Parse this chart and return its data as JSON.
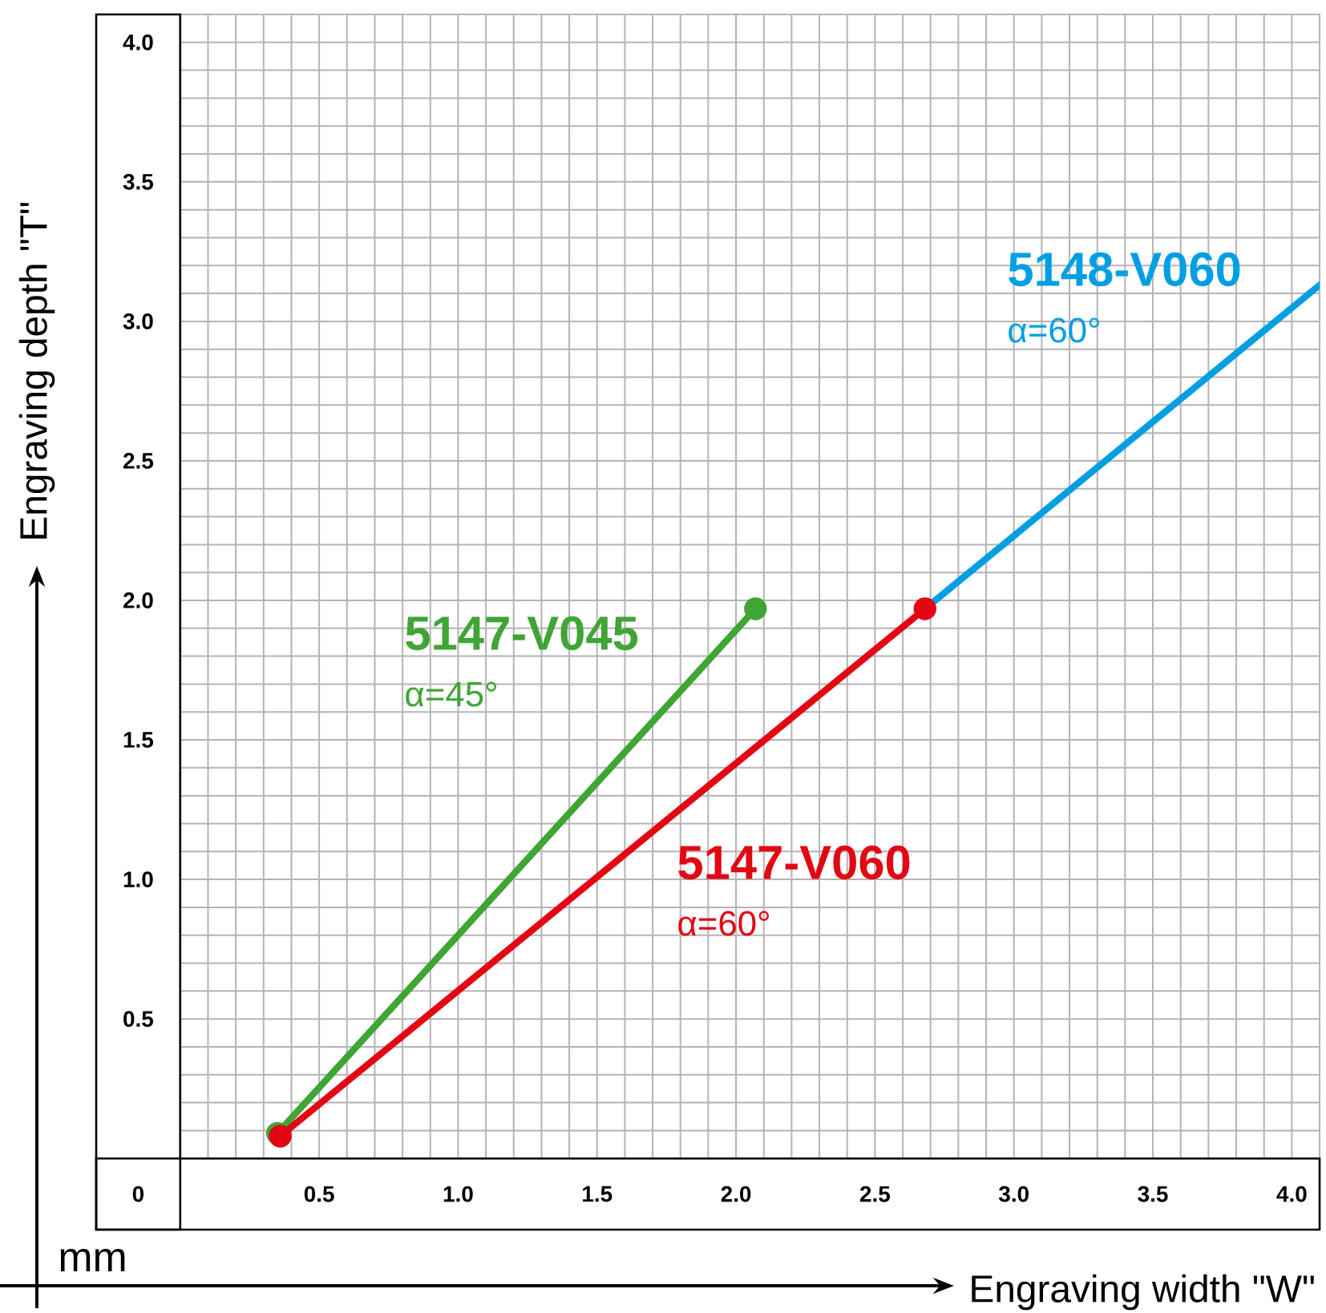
{
  "chart_data": {
    "type": "line",
    "xlabel": "Engraving width \"W\"",
    "ylabel": "Engraving depth \"T\"",
    "series": [
      {
        "name": "5148-V060",
        "color": "#009fe3",
        "x": [
          2.68,
          4.1
        ],
        "values": [
          1.97,
          3.13
        ],
        "marker": "none"
      },
      {
        "name": "5147-V045",
        "color": "#3fa535",
        "x": [
          0.35,
          2.07
        ],
        "values": [
          0.09,
          1.97
        ]
      },
      {
        "name": "5147-V060",
        "color": "#e30613",
        "x": [
          0.36,
          2.68
        ],
        "values": [
          0.08,
          1.97
        ]
      }
    ],
    "annotations": [
      "α=60°",
      "α=45°",
      "α=60°",
      "0",
      "mm"
    ],
    "marker": "circle",
    "xlim": [
      0,
      4.1
    ],
    "ylim": [
      0,
      4.1
    ],
    "xticks": [
      {
        "value": 0,
        "label": null
      },
      {
        "value": 0.5,
        "label": "0.5"
      },
      {
        "value": 1,
        "label": "1.0"
      },
      {
        "value": 1.5,
        "label": "1.5"
      },
      {
        "value": 2,
        "label": "2.0"
      },
      {
        "value": 2.5,
        "label": "2.5"
      },
      {
        "value": 3,
        "label": "3.0"
      },
      {
        "value": 3.5,
        "label": "3.5"
      },
      {
        "value": 4,
        "label": "4.0"
      }
    ],
    "yticks": [
      {
        "value": 0,
        "label": null
      },
      {
        "value": 0.5,
        "label": "0.5"
      },
      {
        "value": 1,
        "label": "1.0"
      },
      {
        "value": 1.5,
        "label": "1.5"
      },
      {
        "value": 2,
        "label": "2.0"
      },
      {
        "value": 2.5,
        "label": "2.5"
      },
      {
        "value": 3,
        "label": "3.0"
      },
      {
        "value": 3.5,
        "label": "3.5"
      },
      {
        "value": 4,
        "label": "4.0"
      }
    ],
    "grid": true
  }
}
